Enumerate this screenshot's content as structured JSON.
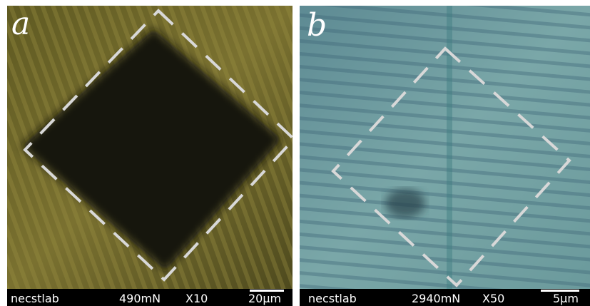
{
  "panels": [
    {
      "label": "a",
      "footer": {
        "lab": "necstlab",
        "load": "490mN",
        "magnification": "X10",
        "scale": "20µm"
      }
    },
    {
      "label": "b",
      "footer": {
        "lab": "necstlab",
        "load": "2940mN",
        "magnification": "X50",
        "scale": "5µm"
      }
    }
  ]
}
